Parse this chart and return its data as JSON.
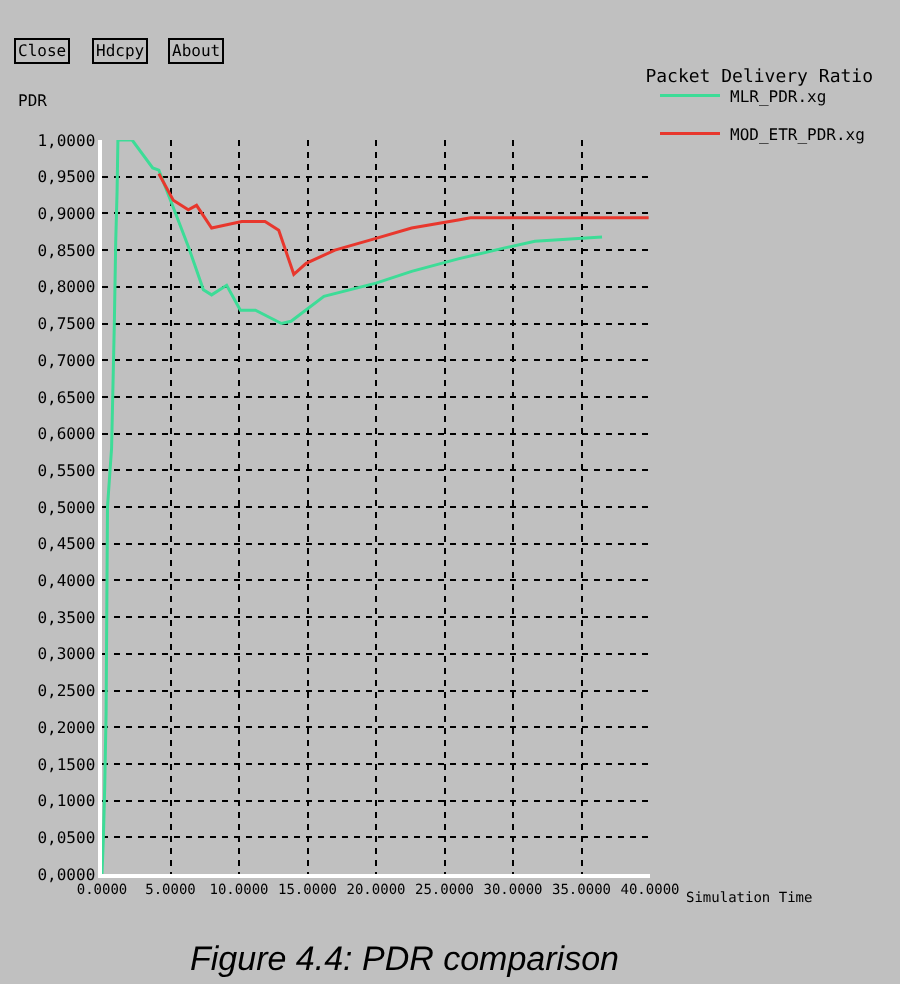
{
  "chart_data": {
    "type": "line",
    "title": "Packet Delivery Ratio",
    "xlabel": "Simulation Time",
    "ylabel": "PDR",
    "annotations": [
      "Close",
      "Hdcpy",
      "About",
      "Figure 4.4: PDR comparison"
    ],
    "xlim": [
      0,
      40
    ],
    "ylim": [
      0,
      1
    ],
    "xticks": [
      {
        "value": 0,
        "label": "0.0000"
      },
      {
        "value": 5,
        "label": "5.0000"
      },
      {
        "value": 10,
        "label": "10.0000"
      },
      {
        "value": 15,
        "label": "15.0000"
      },
      {
        "value": 20,
        "label": "20.0000"
      },
      {
        "value": 25,
        "label": "25.0000"
      },
      {
        "value": 30,
        "label": "30.0000"
      },
      {
        "value": 35,
        "label": "35.0000"
      },
      {
        "value": 40,
        "label": "40.0000"
      }
    ],
    "yticks": [
      {
        "value": 0,
        "label": "0,0000"
      },
      {
        "value": 0.05,
        "label": "0,0500"
      },
      {
        "value": 0.1,
        "label": "0,1000"
      },
      {
        "value": 0.15,
        "label": "0,1500"
      },
      {
        "value": 0.2,
        "label": "0,2000"
      },
      {
        "value": 0.25,
        "label": "0,2500"
      },
      {
        "value": 0.3,
        "label": "0,3000"
      },
      {
        "value": 0.35,
        "label": "0,3500"
      },
      {
        "value": 0.4,
        "label": "0,4000"
      },
      {
        "value": 0.45,
        "label": "0,4500"
      },
      {
        "value": 0.5,
        "label": "0,5000"
      },
      {
        "value": 0.55,
        "label": "0,5500"
      },
      {
        "value": 0.6,
        "label": "0,6000"
      },
      {
        "value": 0.65,
        "label": "0,6500"
      },
      {
        "value": 0.7,
        "label": "0,7000"
      },
      {
        "value": 0.75,
        "label": "0,7500"
      },
      {
        "value": 0.8,
        "label": "0,8000"
      },
      {
        "value": 0.85,
        "label": "0,8500"
      },
      {
        "value": 0.9,
        "label": "0,9000"
      },
      {
        "value": 0.95,
        "label": "0,9500"
      },
      {
        "value": 1.0,
        "label": "1,0000"
      }
    ],
    "grid": true,
    "legend": "top right",
    "line_style": "solid",
    "series": [
      {
        "name": "MLR_PDR.xg",
        "color": "#3ddc97",
        "x": [
          0,
          0.1,
          0.2,
          0.3,
          0.4,
          0.7,
          0.9,
          1.0,
          1.1,
          1.16,
          2.2,
          3.7,
          4.15,
          5.0,
          6.3,
          7.4,
          8.0,
          9.1,
          10.1,
          11.2,
          13.1,
          13.8,
          16.2,
          20.0,
          22.6,
          26.0,
          29.4,
          31.6,
          36.5
        ],
        "values": [
          0,
          0.05,
          0.12,
          0.22,
          0.5,
          0.58,
          0.75,
          0.86,
          0.93,
          1.0,
          1.0,
          0.962,
          0.959,
          0.918,
          0.855,
          0.796,
          0.789,
          0.802,
          0.768,
          0.768,
          0.75,
          0.753,
          0.787,
          0.805,
          0.821,
          0.838,
          0.853,
          0.862,
          0.868
        ]
      },
      {
        "name": "MOD_ETR_PDR.xg",
        "color": "#e8372d",
        "x": [
          4.15,
          5.2,
          6.3,
          6.9,
          8.0,
          10.2,
          11.9,
          12.9,
          14.0,
          14.9,
          17.0,
          20.0,
          22.6,
          26.0,
          26.9,
          39.9
        ],
        "values": [
          0.954,
          0.918,
          0.905,
          0.911,
          0.88,
          0.889,
          0.889,
          0.877,
          0.817,
          0.832,
          0.85,
          0.866,
          0.88,
          0.891,
          0.894,
          0.894
        ]
      }
    ]
  }
}
